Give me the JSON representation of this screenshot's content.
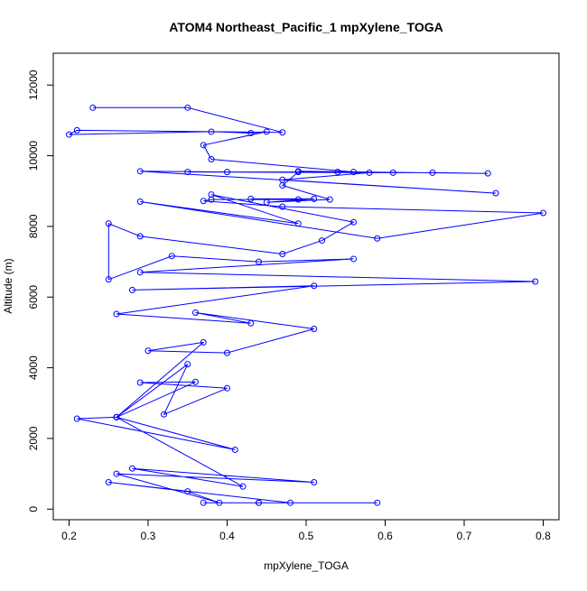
{
  "chart_data": {
    "type": "line",
    "title": "ATOM4 Northeast_Pacific_1 mpXylene_TOGA",
    "xlabel": "mpXylene_TOGA",
    "ylabel": "Altitude (m)",
    "xlim": [
      0.18,
      0.82
    ],
    "ylim": [
      -300,
      12900
    ],
    "x_ticks": [
      0.2,
      0.3,
      0.4,
      0.5,
      0.6,
      0.7,
      0.8
    ],
    "x_tick_labels": [
      "0.2",
      "0.3",
      "0.4",
      "0.5",
      "0.6",
      "0.7",
      "0.8"
    ],
    "y_ticks": [
      0,
      2000,
      4000,
      6000,
      8000,
      10000,
      12000
    ],
    "y_tick_labels": [
      "0",
      "2000",
      "4000",
      "6000",
      "8000",
      "10000",
      "12000"
    ],
    "grid": false,
    "color": "#0000ff",
    "marker": "open-circle",
    "series": [
      {
        "x": [
          0.37,
          0.44,
          0.59,
          0.44,
          0.48,
          0.25,
          0.35,
          0.39,
          0.26,
          0.51,
          0.28,
          0.42,
          0.26,
          0.41,
          0.21,
          0.26,
          0.36,
          0.29,
          0.4,
          0.32,
          0.35,
          0.26,
          0.37,
          0.3,
          0.4,
          0.51,
          0.36,
          0.43,
          0.26,
          0.51,
          0.28,
          0.79,
          0.29,
          0.56,
          0.44,
          0.33,
          0.25,
          0.25,
          0.29,
          0.47,
          0.52,
          0.56,
          0.38,
          0.49,
          0.29,
          0.59,
          0.8,
          0.47,
          0.37,
          0.38,
          0.49,
          0.43,
          0.51,
          0.45,
          0.53,
          0.47,
          0.49,
          0.54,
          0.4,
          0.29,
          0.74,
          0.47,
          0.58,
          0.35,
          0.61,
          0.66,
          0.73,
          0.49,
          0.56,
          0.38,
          0.37,
          0.45,
          0.43,
          0.38,
          0.2,
          0.21,
          0.47,
          0.35,
          0.23
        ],
        "y": [
          180,
          180,
          180,
          180,
          180,
          760,
          500,
          180,
          1000,
          760,
          1150,
          640,
          2600,
          1680,
          2560,
          2600,
          3600,
          3580,
          3420,
          2680,
          4100,
          2600,
          4720,
          4480,
          4420,
          5100,
          5560,
          5260,
          5520,
          6320,
          6200,
          6440,
          6700,
          7080,
          7000,
          7160,
          6500,
          8080,
          7720,
          7220,
          7600,
          8120,
          8900,
          8080,
          8700,
          7660,
          8380,
          8560,
          8720,
          8760,
          8760,
          8780,
          8780,
          8680,
          8760,
          9160,
          9540,
          9540,
          9540,
          9560,
          8940,
          9320,
          9520,
          9540,
          9520,
          9520,
          9500,
          9560,
          9540,
          9900,
          10300,
          10680,
          10640,
          10680,
          10600,
          10720,
          10660,
          11360,
          11360
        ]
      }
    ]
  }
}
